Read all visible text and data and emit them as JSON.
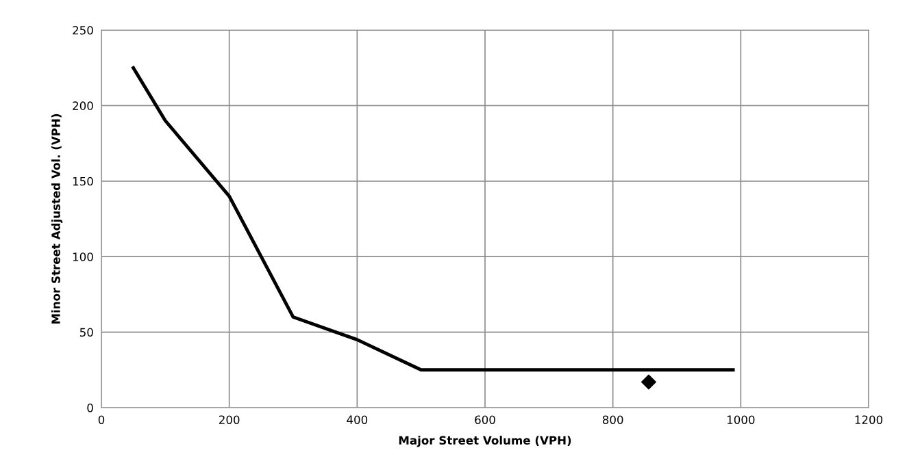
{
  "chart_data": {
    "type": "line",
    "xlabel": "Major Street Volume (VPH)",
    "ylabel": "Minor Street Adjusted Vol. (VPH)",
    "xlim": [
      0,
      1200
    ],
    "xticks": [
      0,
      200,
      400,
      600,
      800,
      1000,
      1200
    ],
    "ylim": [
      0,
      250
    ],
    "yticks": [
      0,
      50,
      100,
      150,
      200,
      250
    ],
    "grid": true,
    "series": [
      {
        "color": "#000000",
        "marker": "none",
        "line_style": "solid",
        "x": [
          50,
          100,
          200,
          300,
          400,
          500,
          988
        ],
        "values": [
          225,
          190,
          140,
          60,
          45,
          25,
          25
        ]
      },
      {
        "type": "scatter",
        "color": "#000000",
        "marker": "diamond",
        "x": [
          856
        ],
        "values": [
          17
        ]
      }
    ]
  }
}
